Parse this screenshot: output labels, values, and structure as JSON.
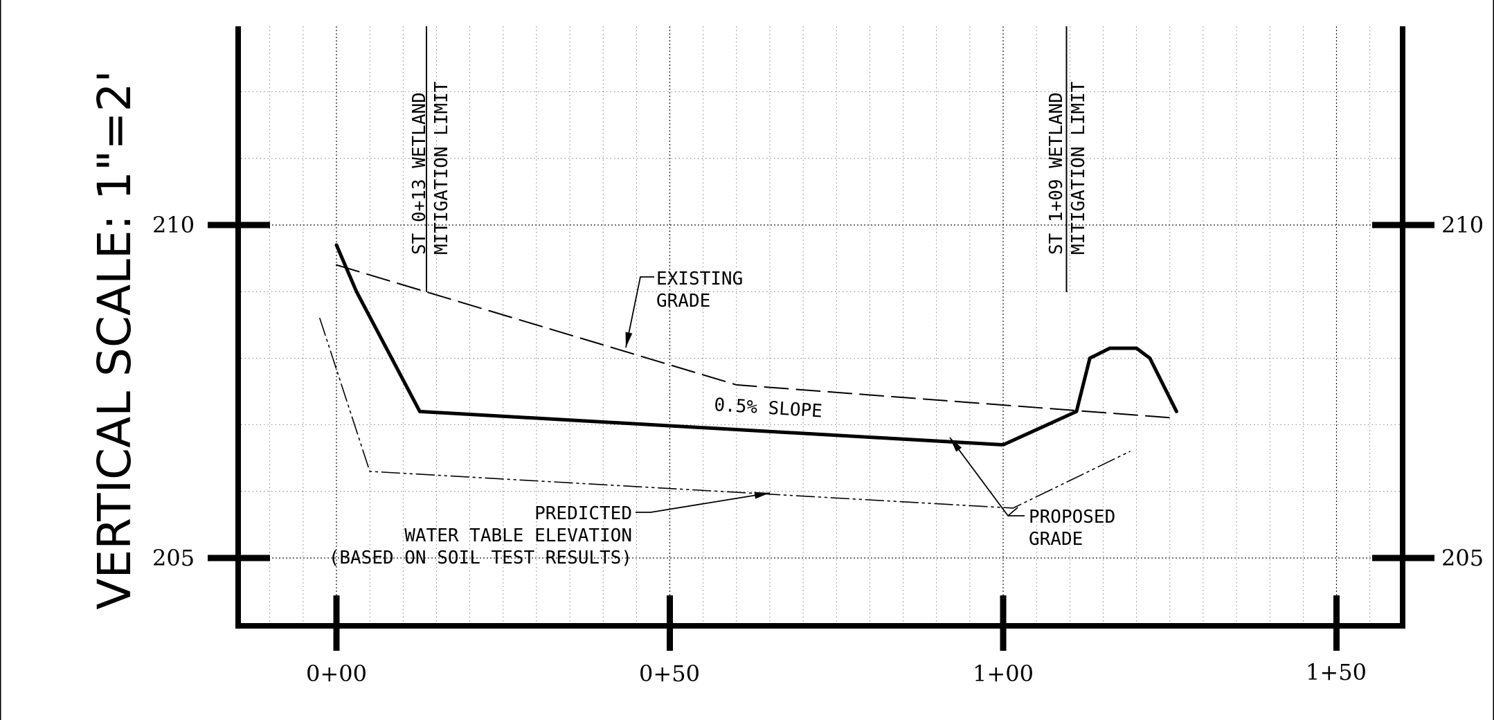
{
  "scale_label": "VERTICAL SCALE: 1\"=2'",
  "elevation_labels": {
    "top": "210",
    "bottom": "205"
  },
  "station_labels": [
    "0+00",
    "0+50",
    "1+00",
    "1+50"
  ],
  "limit_labels": {
    "left": {
      "line1": "ST 0+13 WETLAND",
      "line2": "MITIGATION LIMIT"
    },
    "right": {
      "line1": "ST 1+09 WETLAND",
      "line2": "MITIGATION LIMIT"
    }
  },
  "annotations": {
    "existing_grade": {
      "line1": "EXISTING",
      "line2": "GRADE"
    },
    "slope": "0.5% SLOPE",
    "proposed_grade": {
      "line1": "PROPOSED",
      "line2": "GRADE"
    },
    "water_table": {
      "line1": "PREDICTED",
      "line2": "WATER TABLE ELEVATION",
      "line3": "(BASED ON SOIL TEST RESULTS)"
    }
  },
  "chart_data": {
    "type": "line",
    "xlabel": "",
    "ylabel": "",
    "x_ticks": [
      "0+00",
      "0+50",
      "1+00",
      "1+50"
    ],
    "y_ticks": [
      205,
      210
    ],
    "xlim": [
      -14.5,
      160
    ],
    "ylim": [
      204,
      213
    ],
    "grid": true,
    "series": [
      {
        "name": "PROPOSED GRADE",
        "style": "solid-thick",
        "x": [
          0,
          3,
          12.5,
          100,
          111,
          113,
          116,
          120,
          122,
          126
        ],
        "y": [
          209.7,
          209.0,
          207.2,
          206.7,
          207.2,
          208.0,
          208.15,
          208.15,
          208.0,
          207.2
        ]
      },
      {
        "name": "EXISTING GRADE",
        "style": "dashed",
        "x": [
          0,
          60,
          126
        ],
        "y": [
          209.4,
          207.6,
          207.1
        ]
      },
      {
        "name": "PREDICTED WATER TABLE ELEVATION",
        "style": "dash-dot",
        "x": [
          -2.5,
          5,
          101.5,
          119
        ],
        "y": [
          208.6,
          206.3,
          205.75,
          206.6
        ]
      }
    ],
    "limit_stations": [
      13.5,
      109.5
    ]
  }
}
